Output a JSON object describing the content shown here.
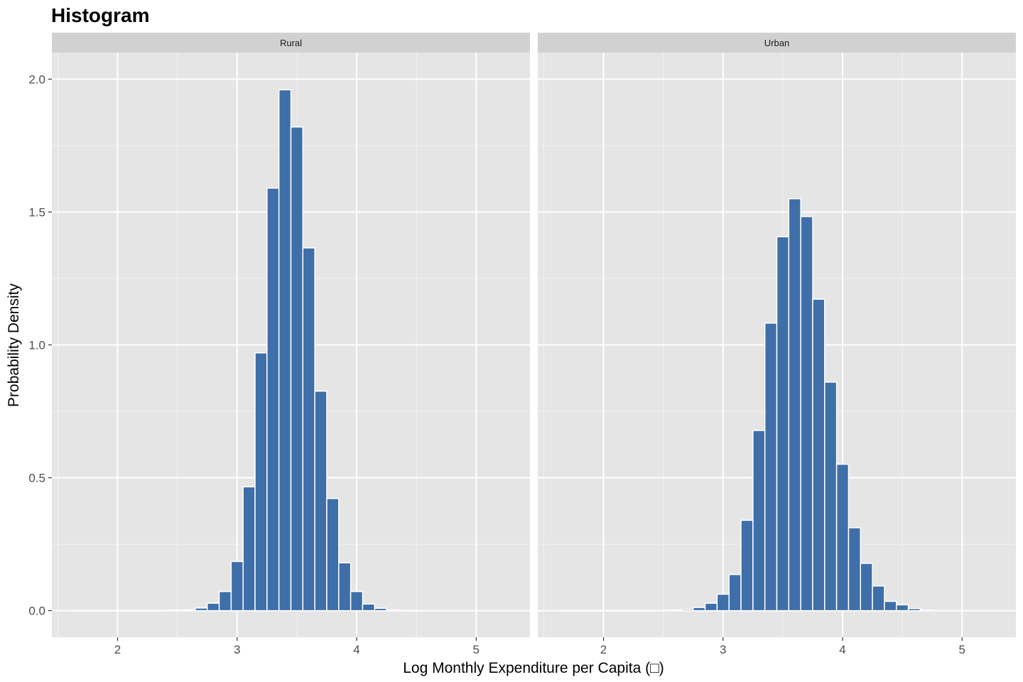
{
  "chart_data": {
    "type": "bar",
    "title": "Histogram",
    "xlabel": "Log Monthly Expenditure per Capita  (□)",
    "ylabel": "Probability Density",
    "xlim": [
      1.45,
      5.45
    ],
    "ylim": [
      -0.1,
      2.1
    ],
    "x_ticks": [
      2,
      3,
      4,
      5
    ],
    "x_tick_labels": [
      "2",
      "3",
      "4",
      "5"
    ],
    "y_ticks": [
      0.0,
      0.5,
      1.0,
      1.5,
      2.0
    ],
    "y_tick_labels": [
      "0.0",
      "0.5",
      "1.0",
      "1.5",
      "2.0"
    ],
    "grid": true,
    "bin_width": 0.1,
    "bar_color": "#3E6FA8",
    "panel_bg": "#E5E5E5",
    "strip_bg": "#D1D1D1",
    "panels": [
      {
        "label": "Rural",
        "bin_centers": [
          1.7,
          1.8,
          1.9,
          2.0,
          2.1,
          2.2,
          2.3,
          2.4,
          2.5,
          2.6,
          2.7,
          2.8,
          2.9,
          3.0,
          3.1,
          3.2,
          3.3,
          3.4,
          3.5,
          3.6,
          3.7,
          3.8,
          3.9,
          4.0,
          4.1,
          4.2,
          4.3,
          4.4,
          4.5
        ],
        "values": [
          0.0,
          0.0,
          0.0,
          0.0,
          0.0,
          0.0,
          0.0,
          0.001,
          0.002,
          0.003,
          0.01,
          0.028,
          0.072,
          0.185,
          0.466,
          0.97,
          1.59,
          1.96,
          1.82,
          1.365,
          0.826,
          0.422,
          0.18,
          0.072,
          0.025,
          0.009,
          0.003,
          0.001,
          0.0
        ]
      },
      {
        "label": "Urban",
        "bin_centers": [
          1.7,
          1.8,
          1.9,
          2.0,
          2.1,
          2.2,
          2.3,
          2.4,
          2.5,
          2.6,
          2.7,
          2.8,
          2.9,
          3.0,
          3.1,
          3.2,
          3.3,
          3.4,
          3.5,
          3.6,
          3.7,
          3.8,
          3.9,
          4.0,
          4.1,
          4.2,
          4.3,
          4.4,
          4.5,
          4.6,
          4.7
        ],
        "values": [
          0.0,
          0.0,
          0.0,
          0.0,
          0.0,
          0.0,
          0.0,
          0.0,
          0.001,
          0.002,
          0.005,
          0.012,
          0.028,
          0.062,
          0.136,
          0.34,
          0.678,
          1.082,
          1.407,
          1.55,
          1.483,
          1.172,
          0.86,
          0.551,
          0.312,
          0.178,
          0.093,
          0.035,
          0.022,
          0.008,
          0.002
        ]
      }
    ]
  }
}
